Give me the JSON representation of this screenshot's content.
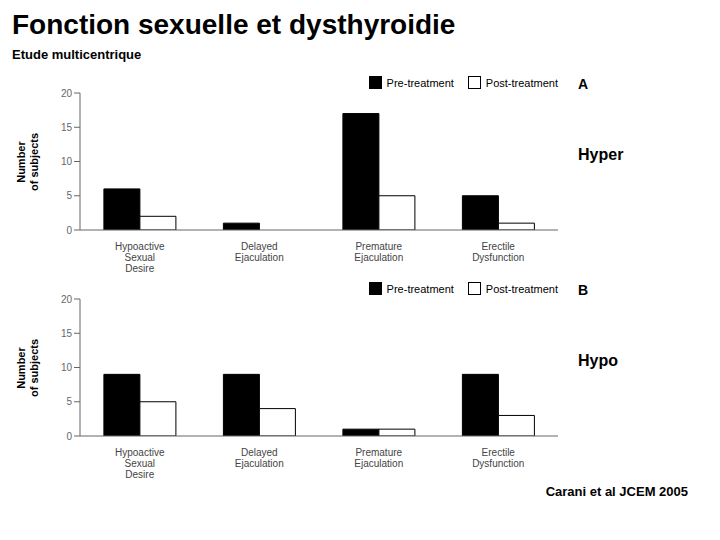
{
  "title": "Fonction sexuelle et dysthyroidie",
  "subtitle": "Etude multicentrique",
  "annotations": [
    "Carani et al JCEM 2005"
  ],
  "chart_data": [
    {
      "type": "bar",
      "categories": [
        "Hypoactive\nSexual\nDesire",
        "Delayed\nEjaculation",
        "Premature\nEjaculation",
        "Erectile\nDysfunction"
      ],
      "series": [
        {
          "name": "Pre-treatment",
          "color": "#000000",
          "values": [
            6,
            1,
            17,
            5
          ]
        },
        {
          "name": "Post-treatment",
          "color": "#ffffff",
          "values": [
            2,
            0,
            5,
            1
          ]
        }
      ],
      "ylabel": "Number\nof subjects",
      "ylim": [
        0,
        20
      ],
      "yticks": [
        0,
        5,
        10,
        15,
        20
      ],
      "grid": false,
      "legend": "upper right",
      "annotations": [
        "A",
        "Hyper"
      ]
    },
    {
      "type": "bar",
      "categories": [
        "Hypoactive\nSexual\nDesire",
        "Delayed\nEjaculation",
        "Premature\nEjaculation",
        "Erectile\nDysfunction"
      ],
      "series": [
        {
          "name": "Pre-treatment",
          "color": "#000000",
          "values": [
            9,
            9,
            1,
            9
          ]
        },
        {
          "name": "Post-treatment",
          "color": "#ffffff",
          "values": [
            5,
            4,
            1,
            3
          ]
        }
      ],
      "ylabel": "Number\nof subjects",
      "ylim": [
        0,
        20
      ],
      "yticks": [
        0,
        5,
        10,
        15,
        20
      ],
      "grid": false,
      "legend": "upper right",
      "annotations": [
        "B",
        "Hypo"
      ]
    }
  ]
}
